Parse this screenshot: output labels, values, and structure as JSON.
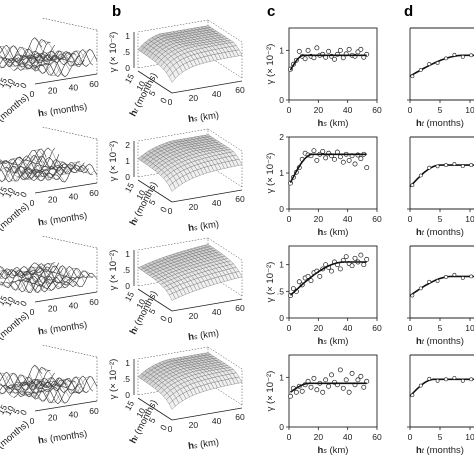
{
  "panel_labels": [
    "b",
    "c",
    "d"
  ],
  "surface_axes": {
    "hs_label": "hs (months)",
    "hs_ticks": [
      "0",
      "20",
      "40",
      "60"
    ],
    "ht_label": "ht (months)",
    "ht_ticks": [
      "15",
      "10",
      "5",
      "0"
    ],
    "gamma_label": "γ (× 10⁻²)",
    "gamma_ticks_c1": [
      "0",
      ".5",
      "1"
    ]
  },
  "chart_data": [
    {
      "type": "scatter",
      "panel": "c",
      "row": 1,
      "xlabel": "hs (km)",
      "ylabel": "γ (× 10⁻²)",
      "xticks": [
        "0",
        "20",
        "40",
        "60"
      ],
      "yticks": [
        "0",
        "1"
      ],
      "xlim": [
        0,
        60
      ],
      "ylim": [
        0,
        1.45
      ],
      "points_x": [
        1,
        3,
        5,
        7,
        9,
        11,
        13,
        15,
        17,
        19,
        21,
        23,
        25,
        27,
        29,
        31,
        33,
        35,
        37,
        39,
        41,
        43,
        45,
        47,
        49,
        51,
        53
      ],
      "points_y": [
        0.62,
        0.72,
        0.8,
        0.98,
        0.88,
        0.83,
        1.0,
        0.88,
        0.85,
        1.05,
        0.9,
        0.92,
        0.86,
        0.98,
        0.88,
        0.82,
        0.92,
        1.0,
        0.85,
        0.93,
        1.02,
        0.9,
        0.88,
        0.97,
        1.02,
        0.86,
        0.92
      ],
      "fit": {
        "nugget": 0.55,
        "sill": 0.9,
        "range": 10
      }
    },
    {
      "type": "scatter",
      "panel": "c",
      "row": 2,
      "xlabel": "hs (km)",
      "ylabel": "γ (× 10⁻²)",
      "xticks": [
        "0",
        "20",
        "40",
        "60"
      ],
      "yticks": [
        "0",
        "1",
        "2"
      ],
      "xlim": [
        0,
        60
      ],
      "ylim": [
        0,
        2
      ],
      "points_x": [
        1,
        3,
        5,
        7,
        9,
        11,
        13,
        15,
        17,
        19,
        21,
        23,
        25,
        27,
        29,
        31,
        33,
        35,
        37,
        39,
        41,
        43,
        45,
        47,
        49,
        51,
        53
      ],
      "points_y": [
        0.72,
        0.88,
        1.02,
        1.15,
        1.38,
        1.55,
        1.5,
        1.48,
        1.62,
        1.35,
        1.52,
        1.6,
        1.42,
        1.55,
        1.48,
        1.38,
        1.58,
        1.45,
        1.3,
        1.52,
        1.35,
        1.48,
        1.25,
        1.5,
        1.4,
        1.52,
        1.15
      ],
      "fit": {
        "nugget": 0.65,
        "sill": 1.52,
        "range": 16
      }
    },
    {
      "type": "scatter",
      "panel": "c",
      "row": 3,
      "xlabel": "hs (km)",
      "ylabel": "γ (× 10⁻²)",
      "xticks": [
        "0",
        "20",
        "40",
        "60"
      ],
      "yticks": [
        "0",
        ".5",
        "1"
      ],
      "xlim": [
        0,
        60
      ],
      "ylim": [
        0,
        1.35
      ],
      "points_x": [
        1,
        3,
        5,
        7,
        9,
        11,
        13,
        15,
        17,
        19,
        21,
        23,
        25,
        27,
        29,
        31,
        33,
        35,
        37,
        39,
        41,
        43,
        45,
        47,
        49,
        51,
        53
      ],
      "points_y": [
        0.42,
        0.55,
        0.5,
        0.68,
        0.62,
        0.75,
        0.78,
        0.7,
        0.85,
        0.88,
        0.78,
        0.92,
        1.0,
        0.95,
        0.88,
        1.05,
        1.0,
        0.92,
        1.08,
        1.15,
        1.02,
        0.98,
        1.12,
        1.05,
        1.18,
        1.0,
        1.1
      ],
      "fit": {
        "nugget": 0.4,
        "sill": 1.05,
        "range": 38
      }
    },
    {
      "type": "scatter",
      "panel": "c",
      "row": 4,
      "xlabel": "hs (km)",
      "ylabel": "γ (× 10⁻²)",
      "xticks": [
        "0",
        "20",
        "40",
        "60"
      ],
      "yticks": [
        "0",
        "1"
      ],
      "xlim": [
        0,
        60
      ],
      "ylim": [
        0,
        1.45
      ],
      "points_x": [
        1,
        3,
        5,
        7,
        9,
        11,
        13,
        15,
        17,
        19,
        21,
        23,
        25,
        27,
        29,
        31,
        33,
        35,
        37,
        39,
        41,
        43,
        45,
        47,
        49,
        51,
        53
      ],
      "points_y": [
        0.62,
        0.78,
        0.7,
        0.82,
        0.72,
        0.85,
        0.92,
        0.8,
        0.98,
        0.75,
        0.88,
        0.7,
        0.95,
        0.82,
        1.05,
        0.9,
        0.85,
        1.15,
        0.78,
        0.95,
        0.7,
        1.08,
        0.85,
        0.95,
        1.02,
        0.8,
        0.92
      ],
      "fit": {
        "nugget": 0.68,
        "sill": 0.88,
        "range": 14
      }
    },
    {
      "type": "line",
      "panel": "d",
      "row": 1,
      "xlabel": "ht (months)",
      "xticks": [
        "0",
        "5",
        "10"
      ],
      "xlim": [
        0,
        15
      ],
      "ylim": [
        0,
        1.45
      ],
      "fit": {
        "nugget": 0.48,
        "sill": 0.9,
        "range": 9
      }
    },
    {
      "type": "line",
      "panel": "d",
      "row": 2,
      "xlabel": "ht (months)",
      "xticks": [
        "0",
        "5",
        "10"
      ],
      "xlim": [
        0,
        15
      ],
      "ylim": [
        0,
        2
      ],
      "fit": {
        "nugget": 0.62,
        "sill": 1.22,
        "range": 5
      }
    },
    {
      "type": "line",
      "panel": "d",
      "row": 3,
      "xlabel": "ht (months)",
      "xticks": [
        "0",
        "5",
        "10"
      ],
      "xlim": [
        0,
        15
      ],
      "ylim": [
        0,
        1.35
      ],
      "fit": {
        "nugget": 0.42,
        "sill": 0.78,
        "range": 7
      }
    },
    {
      "type": "line",
      "panel": "d",
      "row": 4,
      "xlabel": "ht (months)",
      "xticks": [
        "0",
        "5",
        "10"
      ],
      "xlim": [
        0,
        15
      ],
      "ylim": [
        0,
        1.45
      ],
      "fit": {
        "nugget": 0.62,
        "sill": 0.96,
        "range": 4
      }
    }
  ]
}
